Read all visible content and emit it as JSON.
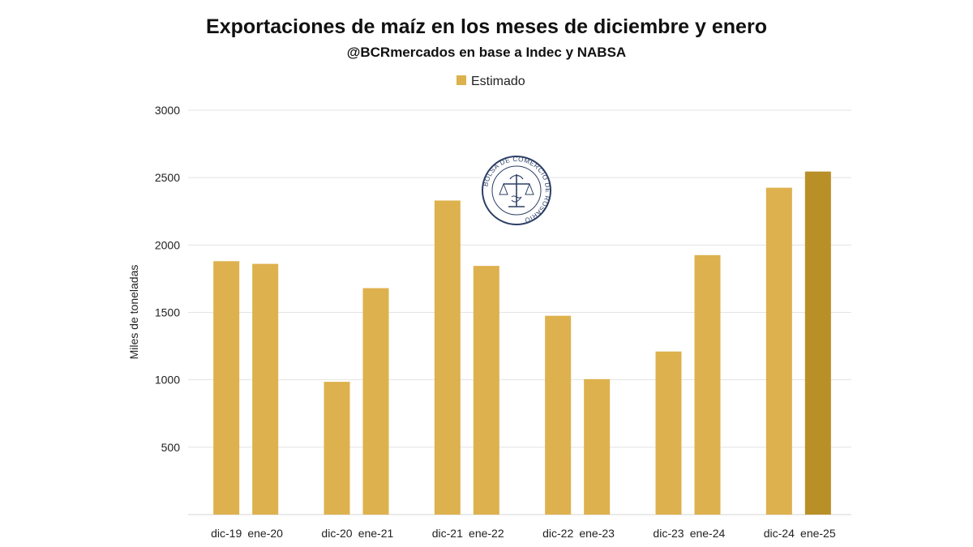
{
  "chart_data": {
    "type": "bar",
    "title": "Exportaciones de maíz en los meses de diciembre y enero",
    "subtitle": "@BCRmercados en base a Indec y NABSA",
    "ylabel": "Miles de toneladas",
    "xlabel": "",
    "legend": {
      "label": "Estimado",
      "position": "top"
    },
    "ylim": [
      0,
      3000
    ],
    "yticks": [
      500,
      1000,
      1500,
      2000,
      2500,
      3000
    ],
    "grid": true,
    "categories": [
      "dic-19",
      "ene-20",
      "dic-20",
      "ene-21",
      "dic-21",
      "ene-22",
      "dic-22",
      "ene-23",
      "dic-23",
      "ene-24",
      "dic-24",
      "ene-25"
    ],
    "values": [
      1880,
      1860,
      985,
      1680,
      2330,
      1845,
      1475,
      1005,
      1210,
      1925,
      2425,
      2545
    ],
    "estimated": [
      false,
      false,
      false,
      false,
      false,
      false,
      false,
      false,
      false,
      false,
      false,
      true
    ],
    "colors": {
      "bar": "#DDB14D",
      "estimated": "#B98F27",
      "grid": "#E3E3E3"
    }
  },
  "logo": {
    "text": "BOLSA DE COMERCIO DE ROSARIO"
  }
}
